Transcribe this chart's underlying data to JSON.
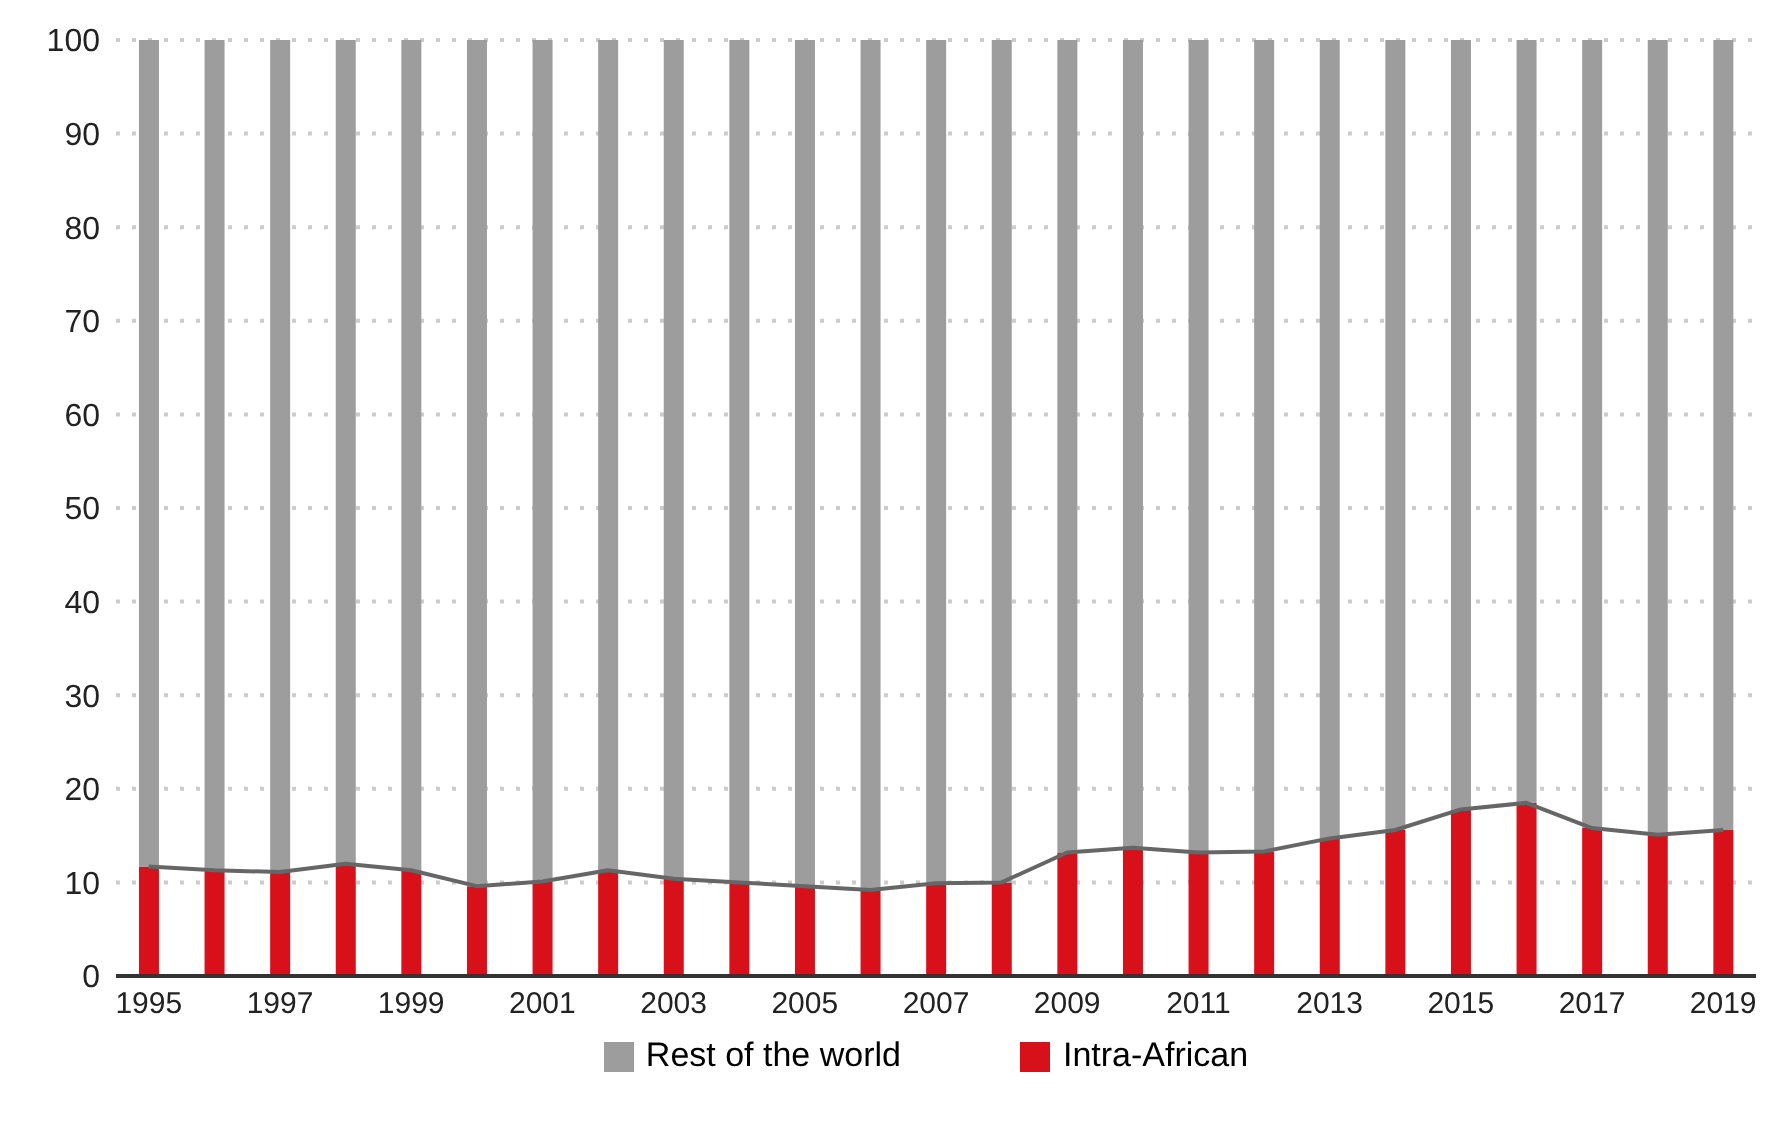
{
  "chart_data": {
    "type": "bar",
    "stacked": true,
    "categories": [
      "1995",
      null,
      "1997",
      null,
      "1999",
      null,
      "2001",
      null,
      "2003",
      null,
      "2005",
      null,
      "2007",
      null,
      "2009",
      null,
      "2011",
      null,
      "2013",
      null,
      "2015",
      null,
      "2017",
      null,
      "2019"
    ],
    "series": [
      {
        "name": "Intra-African",
        "color": "#d7101a",
        "values": [
          11.7,
          11.3,
          11.1,
          12.0,
          11.3,
          9.6,
          10.1,
          11.3,
          10.4,
          10.0,
          9.6,
          9.2,
          9.9,
          10.0,
          13.2,
          13.7,
          13.2,
          13.3,
          14.7,
          15.6,
          17.8,
          18.5,
          15.8,
          15.1,
          15.6
        ]
      },
      {
        "name": "Rest of the world",
        "color": "#9d9d9d",
        "values": [
          88.3,
          88.7,
          88.9,
          88.0,
          88.7,
          90.4,
          89.9,
          88.7,
          89.6,
          90.0,
          90.4,
          90.8,
          90.1,
          90.0,
          86.8,
          86.3,
          86.8,
          86.7,
          85.3,
          84.4,
          82.2,
          81.5,
          84.2,
          84.9,
          84.4
        ]
      },
      {
        "type": "line",
        "color": "#666666",
        "values": [
          11.7,
          11.3,
          11.1,
          12.0,
          11.3,
          9.6,
          10.1,
          11.3,
          10.4,
          10.0,
          9.6,
          9.2,
          9.9,
          10.0,
          13.2,
          13.7,
          13.2,
          13.3,
          14.7,
          15.6,
          17.8,
          18.5,
          15.8,
          15.1,
          15.6
        ]
      }
    ],
    "ylim": [
      0,
      100
    ],
    "yticks": [
      0,
      10,
      20,
      30,
      40,
      50,
      60,
      70,
      80,
      90,
      100
    ],
    "grid": "y",
    "legend": "bottom",
    "marker": "none"
  }
}
